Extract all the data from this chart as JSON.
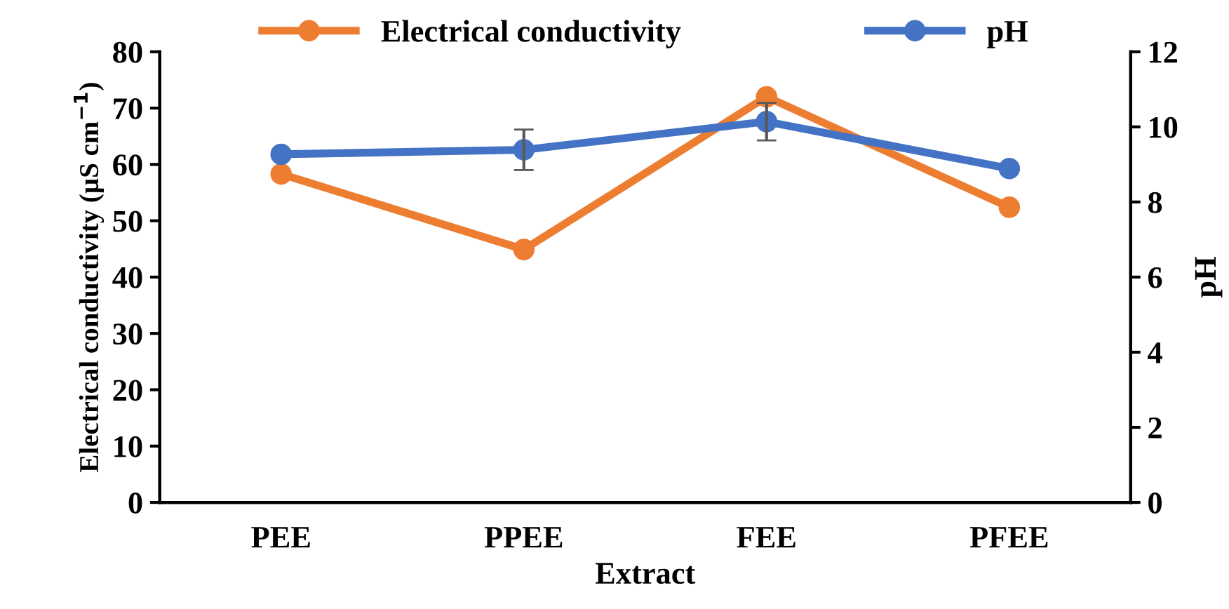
{
  "chart_data": {
    "type": "line",
    "categories": [
      "PEE",
      "PPEE",
      "FEE",
      "PFEE"
    ],
    "xlabel": "Extract",
    "ylabel": "Electrical conductivity (µS cm$^{−1}$)",
    "y2label": "pH",
    "series": [
      {
        "name": "Electrical conductivity",
        "color": "#ed7d31",
        "values": [
          58.3,
          44.9,
          72.0,
          52.4
        ]
      },
      {
        "name": "pH",
        "color": "#4472c4",
        "axis": "y2",
        "values": [
          9.27,
          9.39,
          10.14,
          8.89
        ],
        "errors": [
          null,
          0.54,
          0.5,
          null
        ]
      }
    ],
    "ylim": [
      0,
      80
    ],
    "yticks": [
      0,
      10,
      20,
      30,
      40,
      50,
      60,
      70,
      80
    ],
    "y2lim": [
      0,
      12
    ],
    "y2ticks": [
      0,
      2,
      4,
      6,
      8,
      10,
      12
    ],
    "marker": "circle",
    "line_style": "solid",
    "legend": "top",
    "grid": false
  }
}
